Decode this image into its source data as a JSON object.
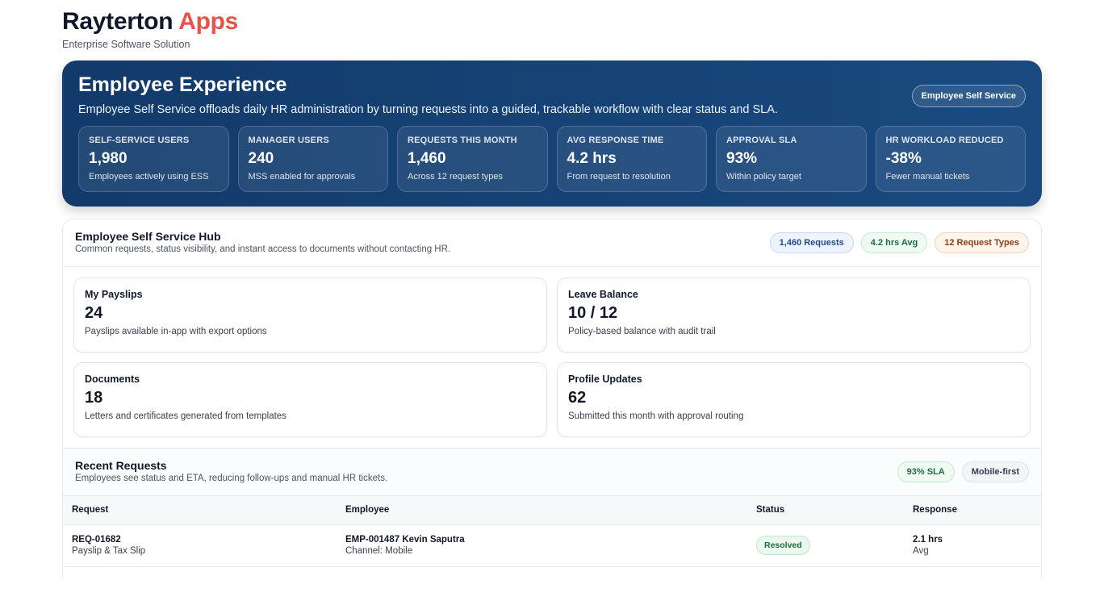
{
  "brand": {
    "name": "Rayterton",
    "accent": "Apps",
    "tagline": "Enterprise Software Solution"
  },
  "hero": {
    "title": "Employee Experience",
    "description": "Employee Self Service offloads daily HR administration by turning requests into a guided, trackable workflow with clear status and SLA.",
    "pill": "Employee Self Service",
    "stats": [
      {
        "label": "SELF-SERVICE USERS",
        "value": "1,980",
        "sub": "Employees actively using ESS"
      },
      {
        "label": "MANAGER USERS",
        "value": "240",
        "sub": "MSS enabled for approvals"
      },
      {
        "label": "REQUESTS THIS MONTH",
        "value": "1,460",
        "sub": "Across 12 request types"
      },
      {
        "label": "AVG RESPONSE TIME",
        "value": "4.2 hrs",
        "sub": "From request to resolution"
      },
      {
        "label": "APPROVAL SLA",
        "value": "93%",
        "sub": "Within policy target"
      },
      {
        "label": "HR WORKLOAD REDUCED",
        "value": "-38%",
        "sub": "Fewer manual tickets"
      }
    ]
  },
  "hub": {
    "title": "Employee Self Service Hub",
    "subtitle": "Common requests, status visibility, and instant access to documents without contacting HR.",
    "badges": [
      "1,460 Requests",
      "4.2 hrs Avg",
      "12 Request Types"
    ],
    "tiles": [
      {
        "title": "My Payslips",
        "value": "24",
        "desc": "Payslips available in-app with export options"
      },
      {
        "title": "Leave Balance",
        "value": "10 / 12",
        "desc": "Policy-based balance with audit trail"
      },
      {
        "title": "Documents",
        "value": "18",
        "desc": "Letters and certificates generated from templates"
      },
      {
        "title": "Profile Updates",
        "value": "62",
        "desc": "Submitted this month with approval routing"
      }
    ]
  },
  "recent": {
    "title": "Recent Requests",
    "subtitle": "Employees see status and ETA, reducing follow-ups and manual HR tickets.",
    "badges": [
      "93% SLA",
      "Mobile-first"
    ],
    "columns": [
      "Request",
      "Employee",
      "Status",
      "Response"
    ],
    "rows": [
      {
        "id": "REQ-01682",
        "type": "Payslip & Tax Slip",
        "employee": "EMP-001487 Kevin Saputra",
        "channel": "Channel: Mobile",
        "status": "Resolved",
        "response": "2.1 hrs",
        "response_sub": "Avg"
      }
    ]
  }
}
